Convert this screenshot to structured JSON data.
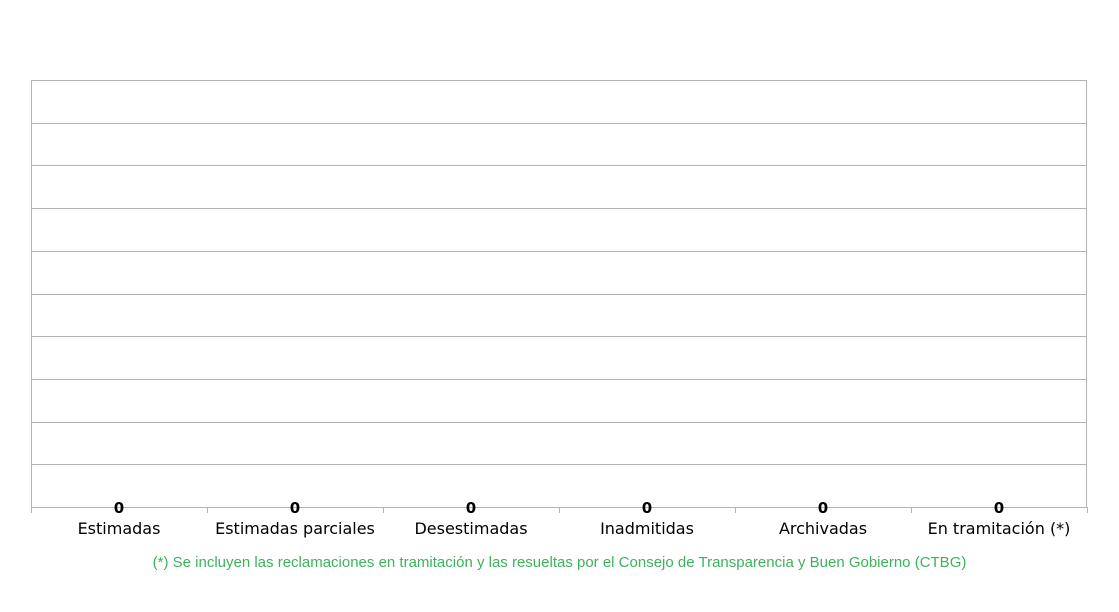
{
  "chart_data": {
    "type": "bar",
    "categories": [
      "Estimadas",
      "Estimadas parciales",
      "Desestimadas",
      "Inadmitidas",
      "Archivadas",
      "En tramitación (*)"
    ],
    "values": [
      0,
      0,
      0,
      0,
      0,
      0
    ],
    "data_labels": [
      "0",
      "0",
      "0",
      "0",
      "0",
      "0"
    ],
    "title": "",
    "xlabel": "",
    "ylabel": "",
    "grid": true,
    "gridline_count": 10,
    "y_tick_labels_shown": false,
    "legend": "none",
    "colors": {
      "grid": "#b3b3b3",
      "frame": "#b3b3b3",
      "label_text": "#000000",
      "footnote_text": "#3cb35a"
    }
  },
  "footnote": "(*) Se incluyen las reclamaciones en tramitación y las resueltas por el Consejo de Transparencia y Buen Gobierno (CTBG)"
}
